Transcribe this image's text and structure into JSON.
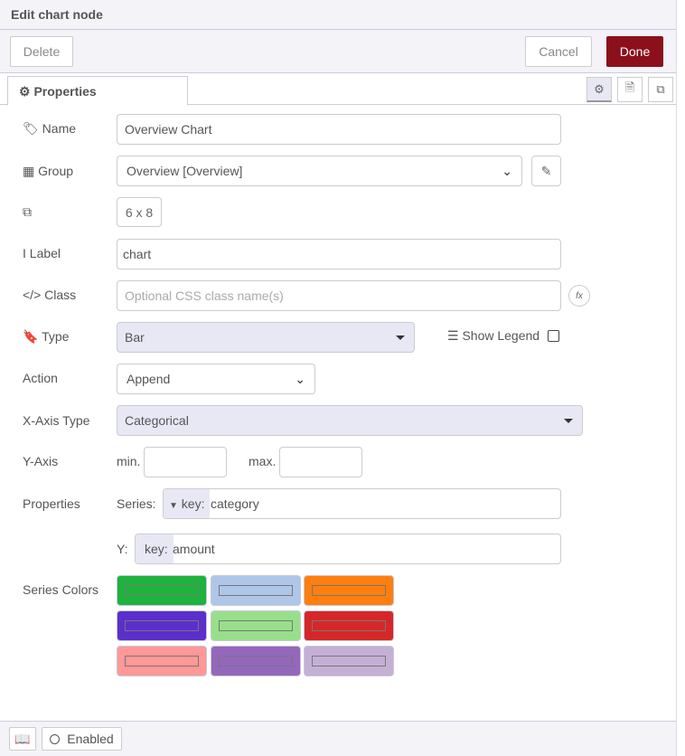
{
  "header": {
    "title": "Edit chart node"
  },
  "toolbar": {
    "delete": "Delete",
    "cancel": "Cancel",
    "done": "Done"
  },
  "tabs": {
    "properties": "Properties"
  },
  "form": {
    "name_label": "Name",
    "name_value": "Overview Chart",
    "group_label": "Group",
    "group_value": "Overview [Overview]",
    "size_value": "6 x 8",
    "label_label": "Label",
    "label_value": "chart",
    "class_label": "Class",
    "class_placeholder": "Optional CSS class name(s)",
    "type_label": "Type",
    "type_value": "Bar",
    "legend_label": "Show Legend",
    "legend_checked": false,
    "action_label": "Action",
    "action_value": "Append",
    "xaxis_label": "X-Axis Type",
    "xaxis_value": "Categorical",
    "yaxis_label": "Y-Axis",
    "min_label": "min.",
    "max_label": "max.",
    "properties_label": "Properties",
    "series_label": "Series:",
    "series_type": "key:",
    "series_value": "category",
    "y_label": "Y:",
    "y_type": "key:",
    "y_value": "amount",
    "colors_label": "Series Colors",
    "colors": [
      "#1db33d",
      "#aec7e8",
      "#ff7f0e",
      "#5b2fcb",
      "#98df8a",
      "#d62728",
      "#ff9896",
      "#9467bd",
      "#c5b0d5"
    ]
  },
  "footer": {
    "enabled": "Enabled"
  }
}
